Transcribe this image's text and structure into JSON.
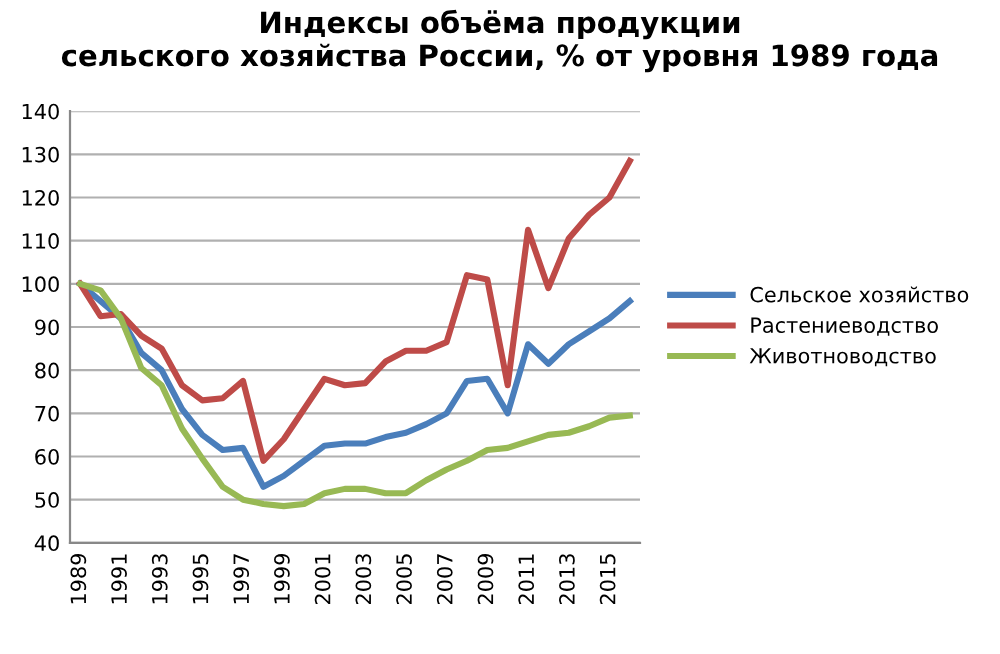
{
  "chart_data": {
    "type": "line",
    "title": "Индексы объёма продукции\nсельского хозяйства России, % от уровня 1989 года",
    "categories": [
      "1989",
      null,
      "1991",
      null,
      "1993",
      null,
      "1995",
      null,
      "1997",
      null,
      "1999",
      null,
      "2001",
      null,
      "2003",
      null,
      "2005",
      null,
      "2007",
      null,
      "2009",
      null,
      "2011",
      null,
      "2013",
      null,
      "2015",
      null
    ],
    "series": [
      {
        "name": "Сельское хозяйство",
        "color": "#4a7ebb",
        "values": [
          100,
          96,
          92,
          84,
          80,
          71,
          65,
          61.5,
          62,
          53,
          55.5,
          59,
          62.5,
          63,
          63,
          64.5,
          65.5,
          67.5,
          70,
          77.5,
          78,
          70,
          86,
          81.5,
          86,
          89,
          92,
          96
        ]
      },
      {
        "name": "Растениеводство",
        "color": "#be4b48",
        "values": [
          100,
          92.5,
          93,
          88,
          85,
          76.5,
          73,
          73.5,
          77.5,
          59,
          64,
          71,
          78,
          76.5,
          77,
          82,
          84.5,
          84.5,
          86.5,
          102,
          101,
          76.5,
          112.5,
          99,
          110.5,
          116,
          120,
          128.5
        ]
      },
      {
        "name": "Животноводство",
        "color": "#98b954",
        "values": [
          100,
          98.5,
          92,
          80.5,
          76.5,
          66.5,
          59.5,
          53,
          50,
          49,
          48.5,
          49,
          51.5,
          52.5,
          52.5,
          51.5,
          51.5,
          54.5,
          57,
          59,
          61.5,
          62,
          63.5,
          65,
          65.5,
          67,
          69,
          69.5
        ]
      }
    ],
    "ylim": [
      40,
      140
    ],
    "yticks": [
      40,
      50,
      60,
      70,
      80,
      90,
      100,
      110,
      120,
      130,
      140
    ],
    "grid": "y",
    "legend": "right",
    "marker": "none",
    "line_style": "solid"
  }
}
